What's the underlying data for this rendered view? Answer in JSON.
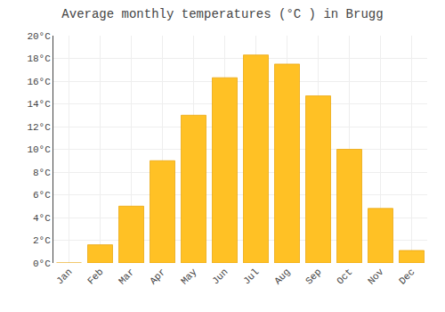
{
  "chart_data": {
    "type": "bar",
    "title": "Average monthly temperatures (°C ) in Brugg",
    "categories": [
      "Jan",
      "Feb",
      "Mar",
      "Apr",
      "May",
      "Jun",
      "Jul",
      "Aug",
      "Sep",
      "Oct",
      "Nov",
      "Dec"
    ],
    "values": [
      0.0,
      1.6,
      5.0,
      9.0,
      13.0,
      16.3,
      18.3,
      17.5,
      14.7,
      10.0,
      4.8,
      1.1
    ],
    "color": "#FFC125",
    "ylim": [
      0,
      20
    ],
    "yticks": [
      {
        "value": 0,
        "label": "0°C"
      },
      {
        "value": 2,
        "label": "2°C"
      },
      {
        "value": 4,
        "label": "4°C"
      },
      {
        "value": 6,
        "label": "6°C"
      },
      {
        "value": 8,
        "label": "8°C"
      },
      {
        "value": 10,
        "label": "10°C"
      },
      {
        "value": 12,
        "label": "12°C"
      },
      {
        "value": 14,
        "label": "14°C"
      },
      {
        "value": 16,
        "label": "16°C"
      },
      {
        "value": 18,
        "label": "18°C"
      },
      {
        "value": 20,
        "label": "20°C"
      }
    ],
    "grid": true
  }
}
